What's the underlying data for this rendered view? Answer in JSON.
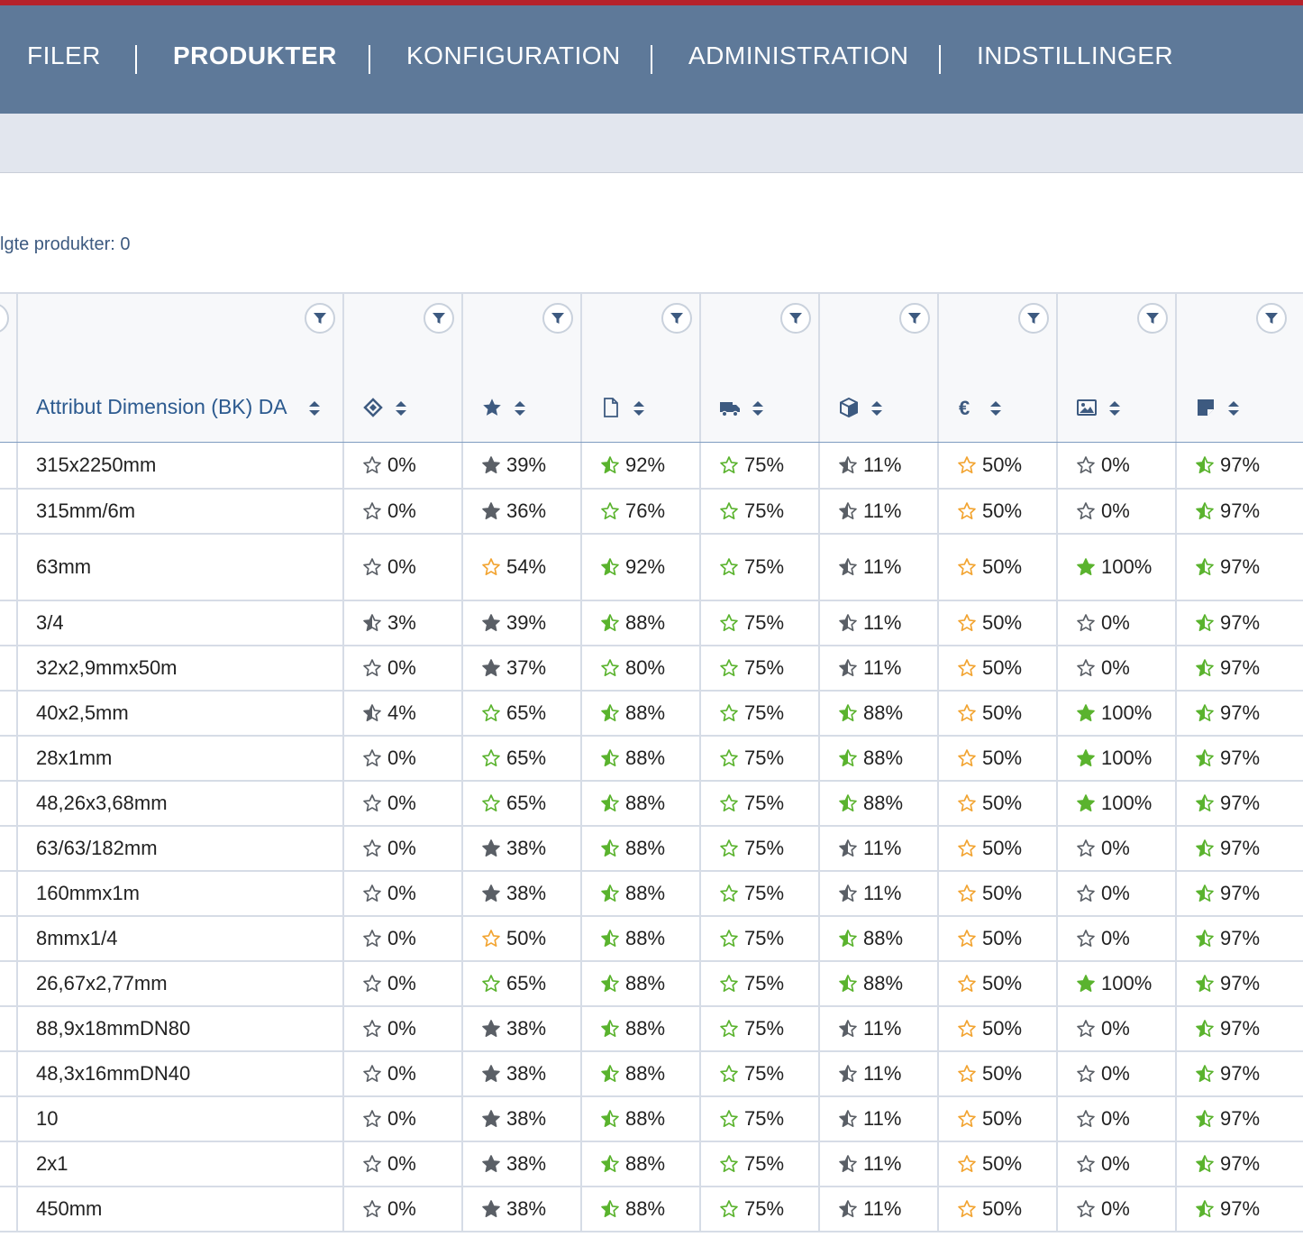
{
  "nav": {
    "items": [
      {
        "label": "FILER",
        "active": false
      },
      {
        "label": "PRODUKTER",
        "active": true
      },
      {
        "label": "KONFIGURATION",
        "active": false
      },
      {
        "label": "ADMINISTRATION",
        "active": false
      },
      {
        "label": "INDSTILLINGER",
        "active": false
      }
    ]
  },
  "selection": {
    "label": "lgte produkter: 0"
  },
  "colors": {
    "nav_bg": "#5e7999",
    "accent_red": "#b5222b",
    "star_green": "#5ab32e",
    "star_orange": "#f2a431",
    "star_gray": "#5a5f66",
    "header_text": "#2c5a8f"
  },
  "table": {
    "columns": [
      {
        "label": "Attribut Dimension (BK) DA",
        "icon": "none"
      },
      {
        "label": "",
        "icon": "tags-icon"
      },
      {
        "label": "",
        "icon": "star-icon"
      },
      {
        "label": "",
        "icon": "document-icon"
      },
      {
        "label": "",
        "icon": "truck-icon"
      },
      {
        "label": "",
        "icon": "cube-icon"
      },
      {
        "label": "",
        "icon": "euro-icon"
      },
      {
        "label": "",
        "icon": "image-icon"
      },
      {
        "label": "",
        "icon": "note-icon"
      }
    ],
    "star_legend": {
      "empty": "empty-star-icon",
      "half": "half-star-icon",
      "full": "full-star-icon"
    },
    "rows": [
      {
        "dimension": "315x2250mm",
        "scores": [
          [
            "0%",
            "empty",
            "gray"
          ],
          [
            "39%",
            "full",
            "gray"
          ],
          [
            "92%",
            "half",
            "green"
          ],
          [
            "75%",
            "empty",
            "green"
          ],
          [
            "11%",
            "half",
            "gray"
          ],
          [
            "50%",
            "empty",
            "orange"
          ],
          [
            "0%",
            "empty",
            "gray"
          ],
          [
            "97%",
            "half",
            "green"
          ]
        ]
      },
      {
        "dimension": "315mm/6m",
        "scores": [
          [
            "0%",
            "empty",
            "gray"
          ],
          [
            "36%",
            "full",
            "gray"
          ],
          [
            "76%",
            "empty",
            "green"
          ],
          [
            "75%",
            "empty",
            "green"
          ],
          [
            "11%",
            "half",
            "gray"
          ],
          [
            "50%",
            "empty",
            "orange"
          ],
          [
            "0%",
            "empty",
            "gray"
          ],
          [
            "97%",
            "half",
            "green"
          ]
        ]
      },
      {
        "dimension": "63mm",
        "scores": [
          [
            "0%",
            "empty",
            "gray"
          ],
          [
            "54%",
            "empty",
            "orange"
          ],
          [
            "92%",
            "half",
            "green"
          ],
          [
            "75%",
            "empty",
            "green"
          ],
          [
            "11%",
            "half",
            "gray"
          ],
          [
            "50%",
            "empty",
            "orange"
          ],
          [
            "100%",
            "full",
            "green"
          ],
          [
            "97%",
            "half",
            "green"
          ]
        ]
      },
      {
        "dimension": "3/4",
        "scores": [
          [
            "3%",
            "half",
            "gray"
          ],
          [
            "39%",
            "full",
            "gray"
          ],
          [
            "88%",
            "half",
            "green"
          ],
          [
            "75%",
            "empty",
            "green"
          ],
          [
            "11%",
            "half",
            "gray"
          ],
          [
            "50%",
            "empty",
            "orange"
          ],
          [
            "0%",
            "empty",
            "gray"
          ],
          [
            "97%",
            "half",
            "green"
          ]
        ]
      },
      {
        "dimension": "32x2,9mmx50m",
        "scores": [
          [
            "0%",
            "empty",
            "gray"
          ],
          [
            "37%",
            "full",
            "gray"
          ],
          [
            "80%",
            "empty",
            "green"
          ],
          [
            "75%",
            "empty",
            "green"
          ],
          [
            "11%",
            "half",
            "gray"
          ],
          [
            "50%",
            "empty",
            "orange"
          ],
          [
            "0%",
            "empty",
            "gray"
          ],
          [
            "97%",
            "half",
            "green"
          ]
        ]
      },
      {
        "dimension": "40x2,5mm",
        "scores": [
          [
            "4%",
            "half",
            "gray"
          ],
          [
            "65%",
            "empty",
            "green"
          ],
          [
            "88%",
            "half",
            "green"
          ],
          [
            "75%",
            "empty",
            "green"
          ],
          [
            "88%",
            "half",
            "green"
          ],
          [
            "50%",
            "empty",
            "orange"
          ],
          [
            "100%",
            "full",
            "green"
          ],
          [
            "97%",
            "half",
            "green"
          ]
        ]
      },
      {
        "dimension": "28x1mm",
        "scores": [
          [
            "0%",
            "empty",
            "gray"
          ],
          [
            "65%",
            "empty",
            "green"
          ],
          [
            "88%",
            "half",
            "green"
          ],
          [
            "75%",
            "empty",
            "green"
          ],
          [
            "88%",
            "half",
            "green"
          ],
          [
            "50%",
            "empty",
            "orange"
          ],
          [
            "100%",
            "full",
            "green"
          ],
          [
            "97%",
            "half",
            "green"
          ]
        ]
      },
      {
        "dimension": "48,26x3,68mm",
        "scores": [
          [
            "0%",
            "empty",
            "gray"
          ],
          [
            "65%",
            "empty",
            "green"
          ],
          [
            "88%",
            "half",
            "green"
          ],
          [
            "75%",
            "empty",
            "green"
          ],
          [
            "88%",
            "half",
            "green"
          ],
          [
            "50%",
            "empty",
            "orange"
          ],
          [
            "100%",
            "full",
            "green"
          ],
          [
            "97%",
            "half",
            "green"
          ]
        ]
      },
      {
        "dimension": "63/63/182mm",
        "scores": [
          [
            "0%",
            "empty",
            "gray"
          ],
          [
            "38%",
            "full",
            "gray"
          ],
          [
            "88%",
            "half",
            "green"
          ],
          [
            "75%",
            "empty",
            "green"
          ],
          [
            "11%",
            "half",
            "gray"
          ],
          [
            "50%",
            "empty",
            "orange"
          ],
          [
            "0%",
            "empty",
            "gray"
          ],
          [
            "97%",
            "half",
            "green"
          ]
        ]
      },
      {
        "dimension": "160mmx1m",
        "scores": [
          [
            "0%",
            "empty",
            "gray"
          ],
          [
            "38%",
            "full",
            "gray"
          ],
          [
            "88%",
            "half",
            "green"
          ],
          [
            "75%",
            "empty",
            "green"
          ],
          [
            "11%",
            "half",
            "gray"
          ],
          [
            "50%",
            "empty",
            "orange"
          ],
          [
            "0%",
            "empty",
            "gray"
          ],
          [
            "97%",
            "half",
            "green"
          ]
        ]
      },
      {
        "dimension": "8mmx1/4",
        "scores": [
          [
            "0%",
            "empty",
            "gray"
          ],
          [
            "50%",
            "empty",
            "orange"
          ],
          [
            "88%",
            "half",
            "green"
          ],
          [
            "75%",
            "empty",
            "green"
          ],
          [
            "88%",
            "half",
            "green"
          ],
          [
            "50%",
            "empty",
            "orange"
          ],
          [
            "0%",
            "empty",
            "gray"
          ],
          [
            "97%",
            "half",
            "green"
          ]
        ]
      },
      {
        "dimension": "26,67x2,77mm",
        "scores": [
          [
            "0%",
            "empty",
            "gray"
          ],
          [
            "65%",
            "empty",
            "green"
          ],
          [
            "88%",
            "half",
            "green"
          ],
          [
            "75%",
            "empty",
            "green"
          ],
          [
            "88%",
            "half",
            "green"
          ],
          [
            "50%",
            "empty",
            "orange"
          ],
          [
            "100%",
            "full",
            "green"
          ],
          [
            "97%",
            "half",
            "green"
          ]
        ]
      },
      {
        "dimension": "88,9x18mmDN80",
        "scores": [
          [
            "0%",
            "empty",
            "gray"
          ],
          [
            "38%",
            "full",
            "gray"
          ],
          [
            "88%",
            "half",
            "green"
          ],
          [
            "75%",
            "empty",
            "green"
          ],
          [
            "11%",
            "half",
            "gray"
          ],
          [
            "50%",
            "empty",
            "orange"
          ],
          [
            "0%",
            "empty",
            "gray"
          ],
          [
            "97%",
            "half",
            "green"
          ]
        ]
      },
      {
        "dimension": "48,3x16mmDN40",
        "scores": [
          [
            "0%",
            "empty",
            "gray"
          ],
          [
            "38%",
            "full",
            "gray"
          ],
          [
            "88%",
            "half",
            "green"
          ],
          [
            "75%",
            "empty",
            "green"
          ],
          [
            "11%",
            "half",
            "gray"
          ],
          [
            "50%",
            "empty",
            "orange"
          ],
          [
            "0%",
            "empty",
            "gray"
          ],
          [
            "97%",
            "half",
            "green"
          ]
        ]
      },
      {
        "dimension": "10",
        "scores": [
          [
            "0%",
            "empty",
            "gray"
          ],
          [
            "38%",
            "full",
            "gray"
          ],
          [
            "88%",
            "half",
            "green"
          ],
          [
            "75%",
            "empty",
            "green"
          ],
          [
            "11%",
            "half",
            "gray"
          ],
          [
            "50%",
            "empty",
            "orange"
          ],
          [
            "0%",
            "empty",
            "gray"
          ],
          [
            "97%",
            "half",
            "green"
          ]
        ]
      },
      {
        "dimension": "2x1",
        "scores": [
          [
            "0%",
            "empty",
            "gray"
          ],
          [
            "38%",
            "full",
            "gray"
          ],
          [
            "88%",
            "half",
            "green"
          ],
          [
            "75%",
            "empty",
            "green"
          ],
          [
            "11%",
            "half",
            "gray"
          ],
          [
            "50%",
            "empty",
            "orange"
          ],
          [
            "0%",
            "empty",
            "gray"
          ],
          [
            "97%",
            "half",
            "green"
          ]
        ]
      },
      {
        "dimension": "450mm",
        "scores": [
          [
            "0%",
            "empty",
            "gray"
          ],
          [
            "38%",
            "full",
            "gray"
          ],
          [
            "88%",
            "half",
            "green"
          ],
          [
            "75%",
            "empty",
            "green"
          ],
          [
            "11%",
            "half",
            "gray"
          ],
          [
            "50%",
            "empty",
            "orange"
          ],
          [
            "0%",
            "empty",
            "gray"
          ],
          [
            "97%",
            "half",
            "green"
          ]
        ]
      }
    ]
  }
}
